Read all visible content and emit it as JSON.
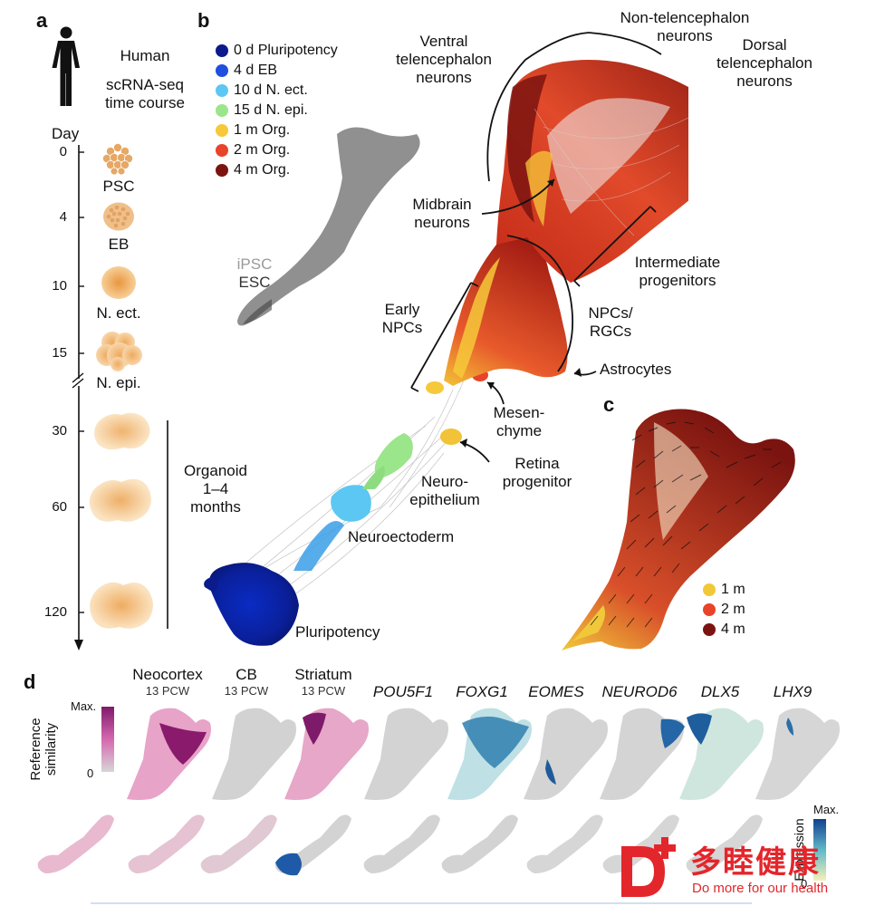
{
  "panel_a": {
    "letter": "a",
    "title": [
      "Human",
      "scRNA-seq",
      "time course"
    ],
    "day_label": "Day",
    "day_ticks": [
      {
        "day": "0",
        "stage": "PSC"
      },
      {
        "day": "4",
        "stage": "EB"
      },
      {
        "day": "10",
        "stage": "N. ect."
      },
      {
        "day": "15",
        "stage": "N. epi."
      },
      {
        "day": "30",
        "stage": ""
      },
      {
        "day": "60",
        "stage": ""
      },
      {
        "day": "120",
        "stage": ""
      }
    ],
    "organoid_label": [
      "Organoid",
      "1–4",
      "months"
    ],
    "colors": {
      "blob": "#f0b971",
      "blob_light": "#fbe2bf"
    }
  },
  "panel_b": {
    "letter": "b",
    "legend": [
      {
        "label": "0 d Pluripotency",
        "color": "#0b1b8c"
      },
      {
        "label": "4 d EB",
        "color": "#1f4fe0"
      },
      {
        "label": "10 d N. ect.",
        "color": "#5cc7f2"
      },
      {
        "label": "15 d N. epi.",
        "color": "#9be58a"
      },
      {
        "label": "1 m Org.",
        "color": "#f6c93a"
      },
      {
        "label": "2 m Org.",
        "color": "#e8442a"
      },
      {
        "label": "4 m Org.",
        "color": "#7b1410"
      }
    ],
    "ipsc_label": "iPSC",
    "esc_label": "ESC",
    "labels": {
      "non_tel": [
        "Non-telencephalon",
        "neurons"
      ],
      "ventral": [
        "Ventral",
        "telencephalon",
        "neurons"
      ],
      "dorsal": [
        "Dorsal",
        "telencephalon",
        "neurons"
      ],
      "midbrain": [
        "Midbrain",
        "neurons"
      ],
      "intermediate": [
        "Intermediate",
        "progenitors"
      ],
      "early_npcs": [
        "Early",
        "NPCs"
      ],
      "npcs_rgcs": [
        "NPCs/",
        "RGCs"
      ],
      "astrocytes": "Astrocytes",
      "mesenchyme": [
        "Mesen-",
        "chyme"
      ],
      "retina": [
        "Retina",
        "progenitor"
      ],
      "neuroepithelium": [
        "Neuro-",
        "epithelium"
      ],
      "neuroectoderm": "Neuroectoderm",
      "pluripotency": "Pluripotency"
    }
  },
  "panel_c": {
    "letter": "c",
    "legend": [
      {
        "label": "1 m",
        "color": "#f1c83a"
      },
      {
        "label": "2 m",
        "color": "#e8442a"
      },
      {
        "label": "4 m",
        "color": "#7b1410"
      }
    ]
  },
  "panel_d": {
    "letter": "d",
    "similarity_label": [
      "Reference",
      "similarity"
    ],
    "max_label": "Max.",
    "zero_label": "0",
    "references": [
      {
        "name": "Neocortex",
        "sub": "13 PCW"
      },
      {
        "name": "CB",
        "sub": "13 PCW"
      },
      {
        "name": "Striatum",
        "sub": "13 PCW"
      }
    ],
    "genes": [
      "POU5F1",
      "FOXG1",
      "EOMES",
      "NEUROD6",
      "DLX5",
      "LHX9"
    ],
    "expression_label": "Expression",
    "expr_max_label": "Max.",
    "expr_zero_label": "0",
    "colors": {
      "sim_high": "#8a1a6b",
      "sim_mid": "#e07bb5",
      "expr_high": "#123f8f",
      "expr_mid": "#5fb8c9",
      "gray": "#cfcfcf"
    }
  },
  "watermark": {
    "brand_cn": "多睦健康",
    "slogan": "Do more for our health",
    "color": "#e3262b"
  }
}
